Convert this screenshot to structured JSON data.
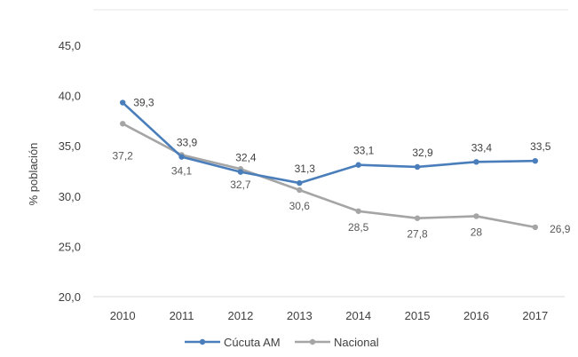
{
  "chart_data": {
    "type": "line",
    "title": "",
    "xlabel": "",
    "ylabel": "% población",
    "x": [
      "2010",
      "2011",
      "2012",
      "2013",
      "2014",
      "2015",
      "2016",
      "2017"
    ],
    "ylim": [
      20,
      45
    ],
    "yticks": [
      "20,0",
      "25,0",
      "30,0",
      "35,0",
      "40,0",
      "45,0"
    ],
    "grid": false,
    "legend_position": "bottom",
    "series": [
      {
        "name": "Cúcuta AM",
        "color": "#4a7ebb",
        "values": [
          39.3,
          33.9,
          32.4,
          31.3,
          33.1,
          32.9,
          33.4,
          33.5
        ],
        "labels": [
          "39,3",
          "33,9",
          "32,4",
          "31,3",
          "33,1",
          "32,9",
          "33,4",
          "33,5"
        ]
      },
      {
        "name": "Nacional",
        "color": "#a5a5a5",
        "values": [
          37.2,
          34.1,
          32.7,
          30.6,
          28.5,
          27.8,
          28,
          26.9
        ],
        "labels": [
          "37,2",
          "34,1",
          "32,7",
          "30,6",
          "28,5",
          "27,8",
          "28",
          "26,9"
        ]
      }
    ]
  }
}
